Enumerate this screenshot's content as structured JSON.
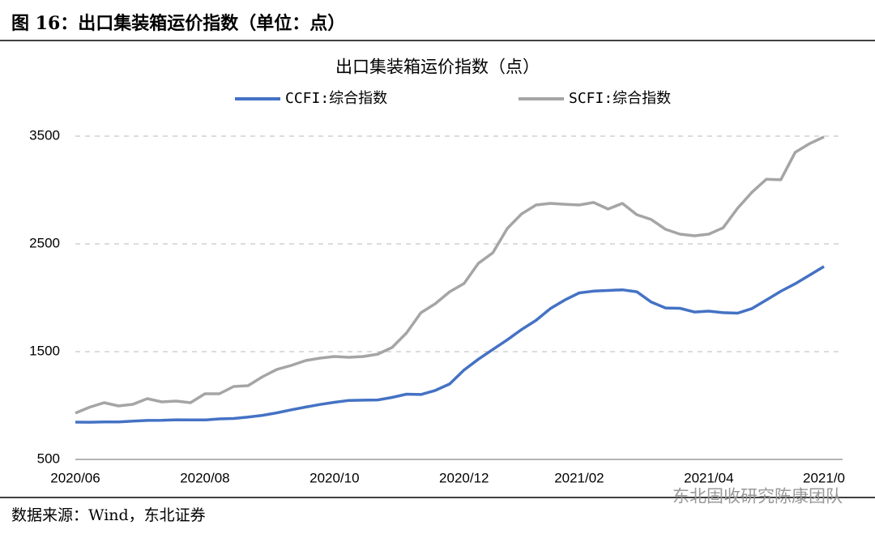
{
  "header": {
    "title": "图 16：出口集装箱运价指数（单位：点）"
  },
  "chart_data": {
    "type": "line",
    "title": "出口集装箱运价指数（点）",
    "categories": [
      "2020/06",
      null,
      null,
      null,
      null,
      null,
      null,
      null,
      null,
      "2020/08",
      null,
      null,
      null,
      null,
      null,
      null,
      null,
      null,
      "2020/10",
      null,
      null,
      null,
      null,
      null,
      null,
      null,
      null,
      "2020/12",
      null,
      null,
      null,
      null,
      null,
      null,
      null,
      "2021/02",
      null,
      null,
      null,
      null,
      null,
      null,
      null,
      null,
      "2021/04",
      null,
      null,
      null,
      null,
      null,
      null,
      null,
      "2021/0"
    ],
    "series": [
      {
        "name": "CCFI:综合指数",
        "color": "#4472c4",
        "values": [
          846,
          845,
          847,
          848,
          855,
          862,
          863,
          868,
          866,
          866,
          876,
          880,
          893,
          909,
          932,
          960,
          986,
          1010,
          1030,
          1047,
          1050,
          1052,
          1075,
          1105,
          1102,
          1140,
          1200,
          1330,
          1430,
          1520,
          1610,
          1705,
          1790,
          1900,
          1980,
          2045,
          2062,
          2068,
          2074,
          2056,
          1960,
          1905,
          1902,
          1868,
          1876,
          1862,
          1857,
          1900,
          1980,
          2060,
          2130,
          2210,
          2290
        ]
      },
      {
        "name": "SCFI:综合指数",
        "color": "#a5a5a5",
        "values": [
          929,
          985,
          1026,
          996,
          1011,
          1064,
          1034,
          1041,
          1026,
          1109,
          1109,
          1177,
          1184,
          1267,
          1335,
          1372,
          1417,
          1440,
          1455,
          1447,
          1455,
          1477,
          1538,
          1673,
          1861,
          1944,
          2056,
          2132,
          2320,
          2417,
          2643,
          2778,
          2861,
          2876,
          2868,
          2861,
          2884,
          2823,
          2876,
          2771,
          2726,
          2635,
          2590,
          2575,
          2590,
          2650,
          2831,
          2980,
          3100,
          3095,
          3350,
          3430,
          3493
        ]
      }
    ],
    "ylim": [
      500,
      3500
    ],
    "yticks": [
      500,
      1500,
      2500,
      3500
    ],
    "grid": true
  },
  "source": "数据来源：Wind，东北证券",
  "watermark": "东北固收研究陈康团队"
}
